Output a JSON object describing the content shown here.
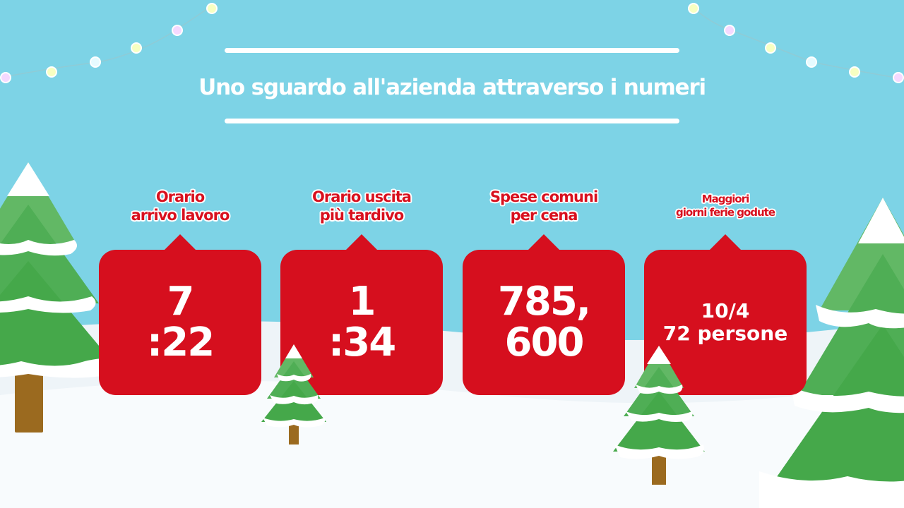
{
  "slide": {
    "title": "Uno sguardo all'azienda attraverso i numeri",
    "colors": {
      "sky": "#7dd3e6",
      "card": "#d60f1e",
      "label": "#d8101e",
      "tree": "#45a84a",
      "snow": "#ffffff"
    },
    "cards": [
      {
        "label_lines": [
          "Orario",
          "arrivo lavoro"
        ],
        "value_lines": [
          "7",
          ":22"
        ]
      },
      {
        "label_lines": [
          "Orario uscita",
          "più tardivo"
        ],
        "value_lines": [
          "1",
          ":34"
        ]
      },
      {
        "label_lines": [
          "Spese comuni",
          "per cena"
        ],
        "value_lines": [
          "785,",
          "600"
        ]
      },
      {
        "label_lines": [
          "Maggiori",
          "giorni ferie godute"
        ],
        "value_lines": [
          "10/4",
          "72 persone"
        ]
      }
    ],
    "decorations": [
      "string-lights",
      "snowy-pine-trees",
      "snow-ground"
    ]
  }
}
